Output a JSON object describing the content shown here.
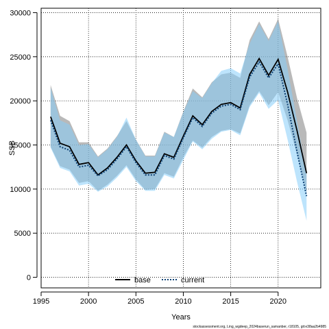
{
  "chart_data": {
    "type": "line",
    "xlabel": "Years",
    "ylabel": "SSB",
    "xlim": [
      1995,
      2024.5
    ],
    "ylim": [
      -1200,
      30500
    ],
    "x_ticks": [
      1995,
      2000,
      2005,
      2010,
      2015,
      2020
    ],
    "y_ticks": [
      0,
      5000,
      10000,
      15000,
      20000,
      25000,
      30000
    ],
    "grid": true,
    "legend_placement": "bottom-center",
    "footnote": "stockassessment.org, Ling_wgdeep_2024baserun_samanber, r18105, git:e38aa2b4985",
    "years": [
      1996,
      1997,
      1998,
      1999,
      2000,
      2001,
      2002,
      2003,
      2004,
      2005,
      2006,
      2007,
      2008,
      2009,
      2010,
      2011,
      2012,
      2013,
      2014,
      2015,
      2016,
      2017,
      2018,
      2019,
      2020,
      2021,
      2022,
      2023
    ],
    "series": [
      {
        "name": "base",
        "color": "#000000",
        "line_style": "solid",
        "band_color": "#7f7f7f",
        "values": [
          18200,
          15200,
          14800,
          12800,
          13000,
          11600,
          12400,
          13600,
          15000,
          13200,
          11800,
          11900,
          14000,
          13600,
          16000,
          18300,
          17300,
          18800,
          19600,
          19800,
          19200,
          23000,
          24800,
          22900,
          24700,
          21000,
          16600,
          11800
        ],
        "lower": [
          14800,
          12600,
          12200,
          10700,
          10900,
          9800,
          10500,
          11500,
          12700,
          11100,
          9900,
          10000,
          11800,
          11400,
          13600,
          15500,
          14700,
          15900,
          16600,
          16800,
          16300,
          19500,
          21100,
          19500,
          21000,
          17800,
          13900,
          9600
        ],
        "upper": [
          21800,
          18300,
          17700,
          15300,
          15300,
          13700,
          14600,
          16000,
          17700,
          15600,
          13800,
          13800,
          16500,
          15900,
          18800,
          21400,
          20400,
          22100,
          23000,
          23200,
          22600,
          26900,
          29000,
          27000,
          29300,
          25000,
          20300,
          16400
        ]
      },
      {
        "name": "current",
        "color": "#0b3f73",
        "line_style": "dotted",
        "band_color": "#87cefa",
        "values": [
          17800,
          14800,
          14400,
          12500,
          12700,
          11500,
          12200,
          13400,
          14800,
          13000,
          11600,
          11600,
          13800,
          13400,
          15800,
          18100,
          17100,
          18600,
          19400,
          19600,
          19000,
          22700,
          24400,
          22600,
          24200,
          19600,
          14200,
          9200
        ],
        "lower": [
          14700,
          12400,
          12000,
          10400,
          10600,
          9700,
          10300,
          11300,
          12500,
          10900,
          9800,
          9800,
          11600,
          11200,
          13300,
          15400,
          14500,
          15700,
          16500,
          16700,
          16100,
          19300,
          20900,
          19100,
          20100,
          15600,
          10800,
          6400
        ],
        "upper": [
          21500,
          17800,
          17300,
          15000,
          15100,
          13600,
          14500,
          15900,
          18100,
          15600,
          13700,
          13700,
          16400,
          15900,
          18700,
          21100,
          20300,
          22000,
          23400,
          23700,
          23100,
          26500,
          28700,
          26800,
          29000,
          23600,
          17700,
          11700
        ]
      }
    ]
  }
}
